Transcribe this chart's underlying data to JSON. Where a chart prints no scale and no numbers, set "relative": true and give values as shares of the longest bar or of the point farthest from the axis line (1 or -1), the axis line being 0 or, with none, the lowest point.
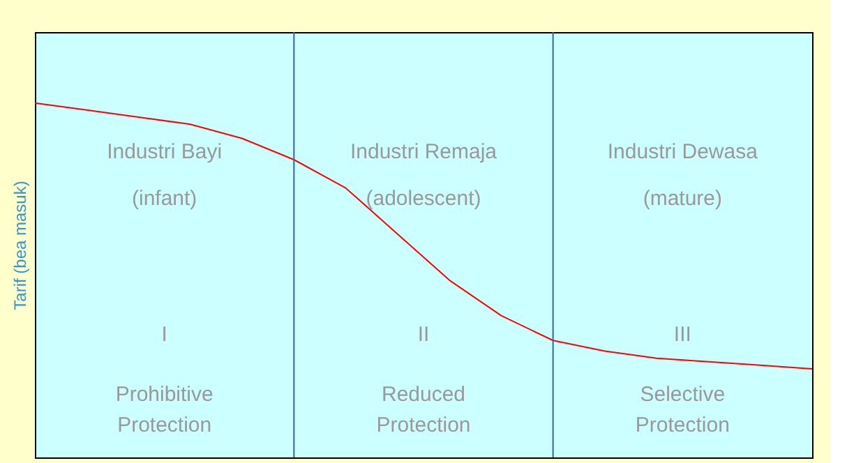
{
  "chart_data": {
    "type": "line",
    "relative": true,
    "ylabel": "Tarif (bea masuk)",
    "categories": [
      null,
      null,
      null,
      null,
      null,
      null,
      null,
      null,
      null,
      null,
      null,
      null,
      null,
      null,
      null,
      null
    ],
    "values": [
      1,
      0.98,
      0.96,
      0.94,
      0.9,
      0.84,
      0.76,
      0.63,
      0.5,
      0.4,
      0.33,
      0.3,
      0.28,
      0.27,
      0.26,
      0.25
    ],
    "color": "#ff0000",
    "annotations": [
      "Industri Bayi",
      "(infant)",
      "I",
      "Prohibitive Protection",
      "Industri Remaja",
      "(adolescent)",
      "II",
      "Reduced Protection",
      "Industri Dewasa",
      "(mature)",
      "III",
      "Selective Protection"
    ]
  }
}
